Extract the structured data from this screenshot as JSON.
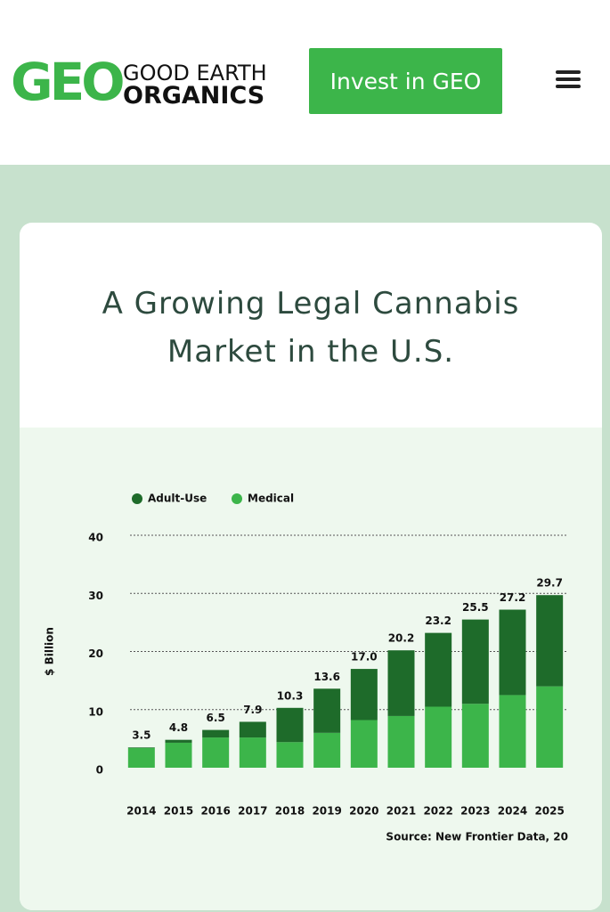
{
  "header": {
    "logo_mark": "GEO",
    "logo_line1": "GOOD EARTH",
    "logo_line2": "ORGANICS",
    "button": "Invest in GEO"
  },
  "chart_data": {
    "type": "stacked_bar",
    "title": "A Growing Legal Cannabis Market in the U.S.",
    "y_label": "$ Billion",
    "source": "Source: New Frontier Data, 20",
    "categories": [
      "2014",
      "2015",
      "2016",
      "2017",
      "2018",
      "2019",
      "2020",
      "2021",
      "2022",
      "2023",
      "2024",
      "2025"
    ],
    "series": [
      {
        "name": "Medical",
        "color": "#3cb54a",
        "values": [
          3.4,
          4.3,
          5.2,
          5.2,
          4.4,
          6.0,
          8.2,
          8.9,
          10.5,
          11.0,
          12.5,
          14.0
        ]
      },
      {
        "name": "Adult-Use",
        "color": "#1e6b2a",
        "values": [
          0.1,
          0.5,
          1.3,
          2.7,
          5.9,
          7.6,
          8.8,
          11.3,
          12.7,
          14.5,
          14.7,
          15.7
        ]
      }
    ],
    "totals": [
      3.5,
      4.8,
      6.5,
      7.9,
      10.3,
      13.6,
      17.0,
      20.2,
      23.2,
      25.5,
      27.2,
      29.7
    ],
    "total_labels": [
      "3.5",
      "4.8",
      "6.5",
      "7.9",
      "10.3",
      "13.6",
      "17.0",
      "20.2",
      "23.2",
      "25.5",
      "27.2",
      "29.7"
    ],
    "ylim": [
      0,
      40
    ],
    "yticks": [
      0,
      10,
      20,
      30,
      40
    ],
    "grid": true,
    "legend": "top-left"
  }
}
